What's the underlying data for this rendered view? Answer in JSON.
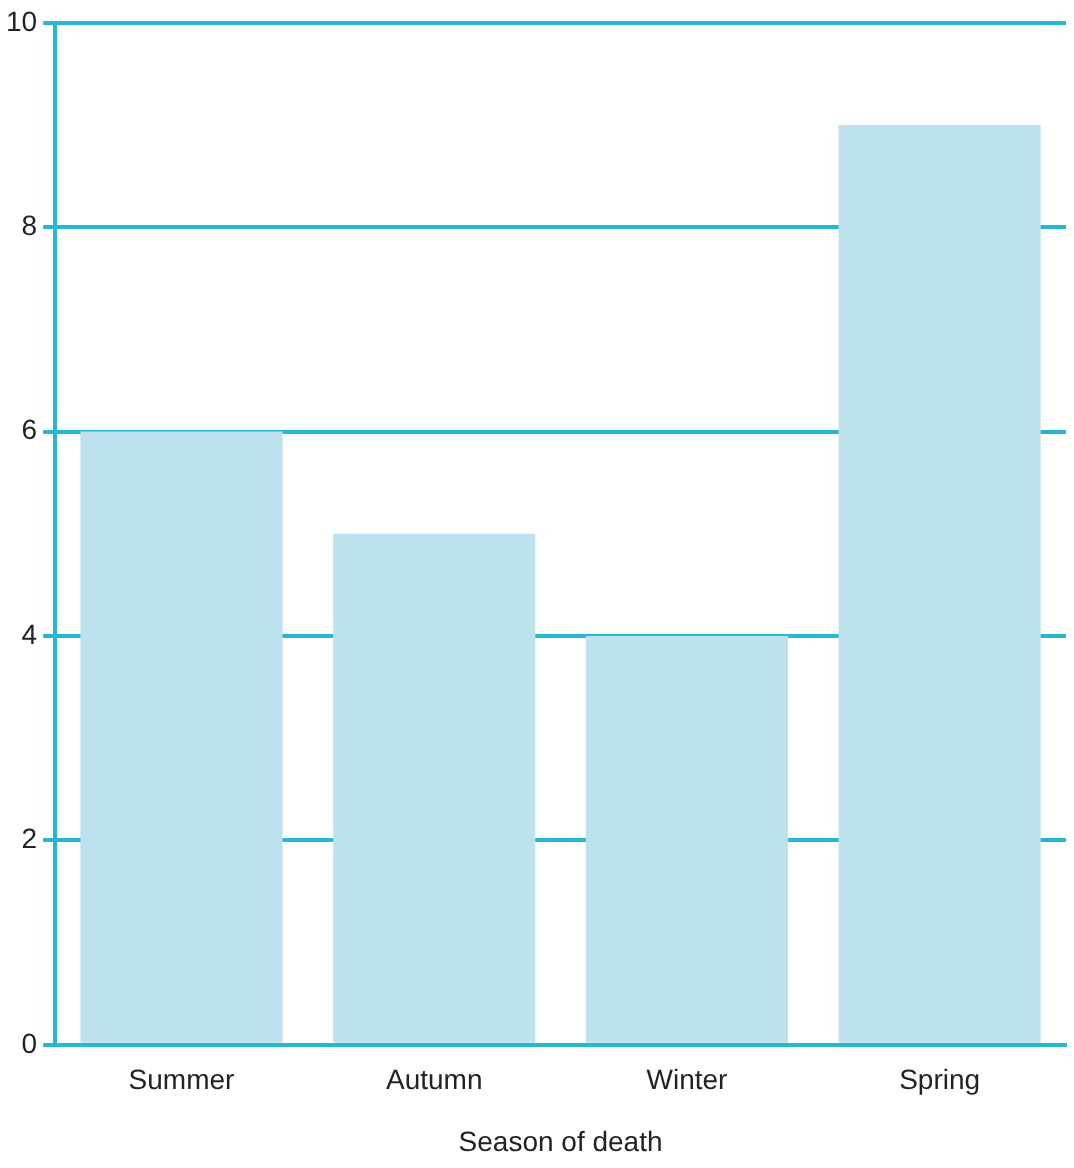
{
  "chart_data": {
    "type": "bar",
    "xlabel": "Season of death",
    "categories": [
      "Summer",
      "Autumn",
      "Winter",
      "Spring"
    ],
    "values": [
      6,
      5,
      4,
      9
    ],
    "color": "#bde2ee",
    "ylim": [
      0,
      10
    ],
    "yticks": [
      0,
      2,
      4,
      6,
      8,
      10
    ],
    "grid": "y"
  }
}
